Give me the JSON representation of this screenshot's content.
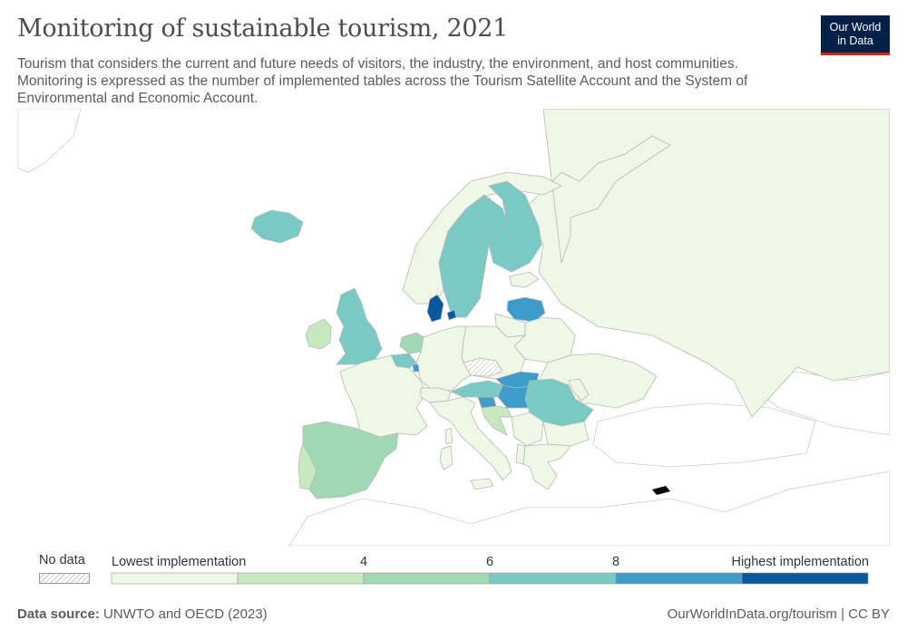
{
  "header": {
    "title": "Monitoring of sustainable tourism, 2021",
    "subtitle": "Tourism that considers the current and future needs of visitors, the industry, the environment, and host communities. Monitoring is expressed as the number of implemented tables across the Tourism Satellite Account and the System of Environmental and Economic Account."
  },
  "logo": {
    "line1": "Our World",
    "line2": "in Data",
    "bg_color": "#002147",
    "accent_color": "#ce261e"
  },
  "legend": {
    "no_data_label": "No data",
    "low_label": "Lowest implementation",
    "high_label": "Highest implementation",
    "tick_labels": [
      "4",
      "6",
      "8"
    ],
    "bins": [
      {
        "color": "#eff7e6"
      },
      {
        "color": "#c7e9c0"
      },
      {
        "color": "#a1d9b4"
      },
      {
        "color": "#79c9c4"
      },
      {
        "color": "#3e9ccb"
      },
      {
        "color": "#08589e"
      }
    ]
  },
  "map": {
    "land_color": "#f7f7f7",
    "other_land_color": "#ffffff",
    "border_color": "#b8b8b8",
    "regions": [
      {
        "name": "Russia",
        "bin": 0
      },
      {
        "name": "Norway",
        "bin": 0
      },
      {
        "name": "Sweden",
        "bin": 3
      },
      {
        "name": "Finland",
        "bin": 3
      },
      {
        "name": "Iceland",
        "bin": 3
      },
      {
        "name": "United Kingdom",
        "bin": 3
      },
      {
        "name": "Ireland",
        "bin": 1
      },
      {
        "name": "Denmark",
        "bin": 5
      },
      {
        "name": "Latvia",
        "bin": 4
      },
      {
        "name": "Estonia",
        "bin": 0
      },
      {
        "name": "Lithuania",
        "bin": 0
      },
      {
        "name": "Belarus",
        "bin": 0
      },
      {
        "name": "Ukraine",
        "bin": 0
      },
      {
        "name": "Poland",
        "bin": 0
      },
      {
        "name": "Germany",
        "bin": 0
      },
      {
        "name": "Netherlands",
        "bin": 2
      },
      {
        "name": "Belgium",
        "bin": 3
      },
      {
        "name": "Luxembourg",
        "bin": 4
      },
      {
        "name": "France",
        "bin": 0
      },
      {
        "name": "Spain",
        "bin": 2
      },
      {
        "name": "Portugal",
        "bin": 1
      },
      {
        "name": "Switzerland",
        "bin": 0
      },
      {
        "name": "Austria",
        "bin": 3
      },
      {
        "name": "Czechia",
        "bin": null
      },
      {
        "name": "Slovakia",
        "bin": 4
      },
      {
        "name": "Hungary",
        "bin": 4
      },
      {
        "name": "Slovenia",
        "bin": 4
      },
      {
        "name": "Croatia",
        "bin": 1
      },
      {
        "name": "Romania",
        "bin": 3
      },
      {
        "name": "Moldova",
        "bin": 0
      },
      {
        "name": "Bulgaria",
        "bin": 0
      },
      {
        "name": "Serbia",
        "bin": 0
      },
      {
        "name": "Italy",
        "bin": 0
      },
      {
        "name": "Greece",
        "bin": 0
      },
      {
        "name": "Albania",
        "bin": 0
      }
    ]
  },
  "footer": {
    "source_label": "Data source:",
    "source_text": "UNWTO and OECD (2023)",
    "url_text": "OurWorldInData.org/tourism | CC BY"
  }
}
